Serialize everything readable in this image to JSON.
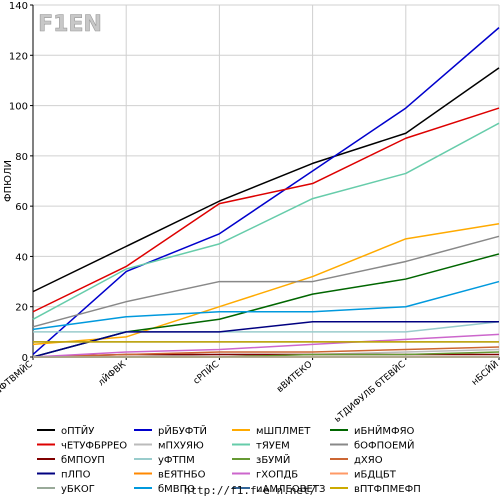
{
  "logo": {
    "text": "F1EN"
  },
  "footer": {
    "url": "http://f1.f-e-n.net/"
  },
  "chart_data": {
    "type": "line",
    "title": "",
    "ylabel": "ФПЮЛИ",
    "xlabel": "",
    "ylim": [
      0,
      140
    ],
    "yticks": [
      0,
      20,
      40,
      60,
      80,
      100,
      120,
      140
    ],
    "grid": true,
    "legend_position": "bottom",
    "categories": [
      "аФТВМЙС",
      "лЙФВК",
      "сРПЙС",
      "вВИТЕКО",
      "ьТДИФУЛБ бТЕВЙС",
      "нБСЙЙ"
    ],
    "series": [
      {
        "name": "оПТЙУ",
        "color": "#000000",
        "values": [
          26,
          44,
          62,
          77,
          89,
          115
        ]
      },
      {
        "name": "рЙБУФТЙ",
        "color": "#0000cc",
        "values": [
          1,
          34,
          49,
          74,
          99,
          131
        ]
      },
      {
        "name": "мШПЛМЕТ",
        "color": "#ffaa00",
        "values": [
          5,
          8,
          20,
          32,
          47,
          53
        ]
      },
      {
        "name": "иБНЙМФЯО",
        "color": "#006600",
        "values": [
          0,
          10,
          15,
          25,
          31,
          41
        ]
      },
      {
        "name": "чЕТУФБРРЕО",
        "color": "#dd0000",
        "values": [
          18,
          36,
          61,
          69,
          87,
          99
        ]
      },
      {
        "name": "мПХУЯЮ",
        "color": "#bbbbbb",
        "values": [
          0,
          0,
          1,
          1,
          2,
          3
        ]
      },
      {
        "name": "тЯУЕМ",
        "color": "#66ccaa",
        "values": [
          15,
          35,
          45,
          63,
          73,
          93
        ]
      },
      {
        "name": "бОФПОЕМЙ",
        "color": "#888888",
        "values": [
          12,
          22,
          30,
          30,
          38,
          48
        ]
      },
      {
        "name": "бМПОУП",
        "color": "#800000",
        "values": [
          0,
          1,
          1,
          1,
          1,
          1
        ]
      },
      {
        "name": "уФТПМ",
        "color": "#99cccc",
        "values": [
          10,
          10,
          10,
          10,
          10,
          14
        ]
      },
      {
        "name": "зБУМЙ",
        "color": "#669933",
        "values": [
          0,
          0,
          0,
          1,
          1,
          2
        ]
      },
      {
        "name": "дХЯО",
        "color": "#cc6633",
        "values": [
          0,
          1,
          2,
          2,
          3,
          4
        ]
      },
      {
        "name": "пЛПО",
        "color": "#000080",
        "values": [
          0,
          10,
          10,
          14,
          14,
          14
        ]
      },
      {
        "name": "вЕЯТНБО",
        "color": "#ff8800",
        "values": [
          0,
          0,
          0,
          0,
          0,
          0
        ]
      },
      {
        "name": "гХОПДБ",
        "color": "#cc66cc",
        "values": [
          0,
          2,
          3,
          5,
          7,
          9
        ]
      },
      {
        "name": "иБДЦБТ",
        "color": "#ff9966",
        "values": [
          0,
          0,
          0,
          0,
          0,
          0
        ]
      },
      {
        "name": "уБКОГ",
        "color": "#99aa99",
        "values": [
          0,
          0,
          0,
          0,
          0,
          0
        ]
      },
      {
        "name": "бМВПО",
        "color": "#0099dd",
        "values": [
          11,
          16,
          18,
          18,
          20,
          30
        ]
      },
      {
        "name": "иАМЛЕОВЕТЗ",
        "color": "#336699",
        "values": [
          6,
          6,
          6,
          6,
          6,
          6
        ]
      },
      {
        "name": "вПТФПМЕФП",
        "color": "#ccaa00",
        "values": [
          6,
          6,
          6,
          6,
          6,
          6
        ]
      }
    ]
  }
}
